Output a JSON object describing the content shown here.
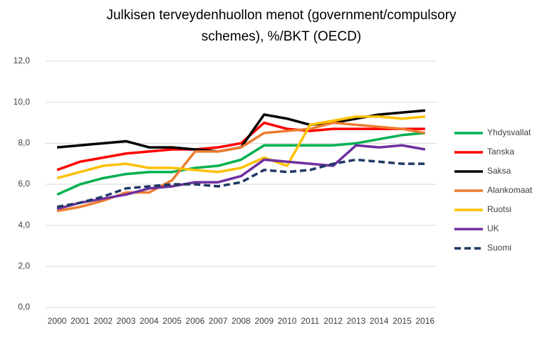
{
  "chart_data": {
    "type": "line",
    "title": [
      "Julkisen terveydenhuollon menot (government/compulsory",
      "schemes), %/BKT (OECD)"
    ],
    "categories": [
      "2000",
      "2001",
      "2002",
      "2003",
      "2004",
      "2005",
      "2006",
      "2007",
      "2008",
      "2009",
      "2010",
      "2011",
      "2012",
      "2013",
      "2014",
      "2015",
      "2016"
    ],
    "ylim": [
      0,
      12
    ],
    "yticks": [
      {
        "value": 0,
        "label": "0,0"
      },
      {
        "value": 2,
        "label": "2,0"
      },
      {
        "value": 4,
        "label": "4,0"
      },
      {
        "value": 6,
        "label": "6,0"
      },
      {
        "value": 8,
        "label": "8,0"
      },
      {
        "value": 10,
        "label": "10,0"
      },
      {
        "value": 12,
        "label": "12,0"
      }
    ],
    "grid": true,
    "legend": "right",
    "series": [
      {
        "name": "Yhdysvallat",
        "color": "#00b050",
        "values": [
          5.5,
          6.0,
          6.3,
          6.5,
          6.6,
          6.6,
          6.8,
          6.9,
          7.2,
          7.9,
          7.9,
          7.9,
          7.9,
          8.0,
          8.2,
          8.4,
          8.5
        ]
      },
      {
        "name": "Tanska",
        "color": "#ff0000",
        "values": [
          6.7,
          7.1,
          7.3,
          7.5,
          7.6,
          7.7,
          7.7,
          7.8,
          8.0,
          9.0,
          8.7,
          8.6,
          8.7,
          8.7,
          8.7,
          8.7,
          8.7
        ]
      },
      {
        "name": "Saksa",
        "color": "#000000",
        "values": [
          7.8,
          7.9,
          8.0,
          8.1,
          7.8,
          7.8,
          7.7,
          7.6,
          7.8,
          9.4,
          9.2,
          8.9,
          9.0,
          9.2,
          9.4,
          9.5,
          9.6
        ]
      },
      {
        "name": "Alankomaat",
        "color": "#ed7d31",
        "values": [
          4.7,
          4.9,
          5.2,
          5.6,
          5.6,
          6.2,
          7.6,
          7.6,
          7.8,
          8.5,
          8.6,
          8.7,
          9.0,
          8.9,
          8.8,
          8.7,
          8.5
        ]
      },
      {
        "name": "Ruotsi",
        "color": "#ffc000",
        "values": [
          6.3,
          6.6,
          6.9,
          7.0,
          6.8,
          6.8,
          6.7,
          6.6,
          6.8,
          7.3,
          6.9,
          8.9,
          9.1,
          9.3,
          9.3,
          9.2,
          9.3
        ]
      },
      {
        "name": "UK",
        "color": "#7030a0",
        "values": [
          4.8,
          5.1,
          5.3,
          5.5,
          5.8,
          5.9,
          6.1,
          6.1,
          6.4,
          7.2,
          7.1,
          7.0,
          6.9,
          7.9,
          7.8,
          7.9,
          7.7
        ]
      },
      {
        "name": "Suomi",
        "color": "#1f3864",
        "dashed": true,
        "values": [
          4.9,
          5.1,
          5.4,
          5.8,
          5.9,
          6.0,
          6.0,
          5.9,
          6.1,
          6.7,
          6.6,
          6.7,
          7.0,
          7.2,
          7.1,
          7.0,
          7.0
        ]
      }
    ]
  }
}
